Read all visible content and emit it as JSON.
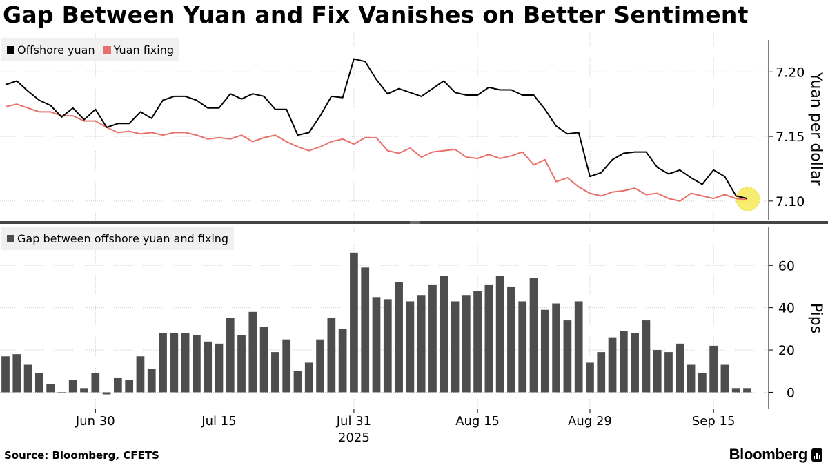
{
  "title": "Gap Between Yuan and Fix Vanishes on Better Sentiment",
  "source": "Source: Bloomberg, CFETS",
  "brand": "Bloomberg",
  "colors": {
    "offshore": "#000000",
    "fixing": "#e8706a",
    "bars": "#4d4d4d",
    "highlight": "#f5e94a"
  },
  "x_axis": {
    "ticks": [
      {
        "index": 8,
        "label": "Jun 30"
      },
      {
        "index": 19,
        "label": "Jul 15"
      },
      {
        "index": 31,
        "label": "Jul 31"
      },
      {
        "index": 42,
        "label": "Aug 15"
      },
      {
        "index": 52,
        "label": "Aug 29"
      },
      {
        "index": 63,
        "label": "Sep 15"
      }
    ],
    "year_label": "2025",
    "year_index": 31
  },
  "chart_data": [
    {
      "type": "line",
      "title": "",
      "ylabel": "Yuan per dollar",
      "ylim": [
        7.085,
        7.23
      ],
      "yticks": [
        "7.10",
        "7.15",
        "7.20"
      ],
      "legend": [
        "Offshore yuan",
        "Yuan fixing"
      ],
      "series": [
        {
          "name": "Offshore yuan",
          "values": [
            7.19,
            7.193,
            7.185,
            7.178,
            7.174,
            7.165,
            7.172,
            7.163,
            7.171,
            7.157,
            7.16,
            7.16,
            7.169,
            7.164,
            7.178,
            7.181,
            7.181,
            7.178,
            7.172,
            7.172,
            7.183,
            7.179,
            7.183,
            7.181,
            7.171,
            7.171,
            7.151,
            7.153,
            7.166,
            7.181,
            7.18,
            7.21,
            7.208,
            7.194,
            7.183,
            7.187,
            7.184,
            7.181,
            7.187,
            7.193,
            7.184,
            7.182,
            7.182,
            7.188,
            7.186,
            7.186,
            7.182,
            7.182,
            7.171,
            7.158,
            7.152,
            7.153,
            7.119,
            7.122,
            7.132,
            7.137,
            7.138,
            7.138,
            7.126,
            7.121,
            7.124,
            7.118,
            7.113,
            7.124,
            7.119,
            7.104,
            7.102
          ]
        },
        {
          "name": "Yuan fixing",
          "values": [
            7.173,
            7.175,
            7.172,
            7.169,
            7.169,
            7.166,
            7.166,
            7.162,
            7.162,
            7.157,
            7.153,
            7.154,
            7.152,
            7.153,
            7.151,
            7.153,
            7.153,
            7.151,
            7.148,
            7.149,
            7.148,
            7.151,
            7.146,
            7.149,
            7.151,
            7.146,
            7.142,
            7.139,
            7.142,
            7.146,
            7.148,
            7.144,
            7.149,
            7.149,
            7.139,
            7.137,
            7.141,
            7.134,
            7.138,
            7.139,
            7.14,
            7.134,
            7.133,
            7.136,
            7.133,
            7.135,
            7.138,
            7.128,
            7.132,
            7.115,
            7.118,
            7.111,
            7.106,
            7.104,
            7.107,
            7.108,
            7.11,
            7.105,
            7.106,
            7.102,
            7.1,
            7.106,
            7.104,
            7.102,
            7.105,
            7.102,
            7.101
          ]
        }
      ]
    },
    {
      "type": "bar",
      "title": "",
      "ylabel": "Pips",
      "ylim": [
        -8,
        78
      ],
      "yticks": [
        "0",
        "20",
        "40",
        "60"
      ],
      "legend": [
        "Gap between offshore yuan and fixing"
      ],
      "series": [
        {
          "name": "Gap between offshore yuan and fixing",
          "values": [
            17,
            18,
            13,
            9,
            4,
            0,
            6,
            2,
            9,
            -1,
            7,
            6,
            17,
            11,
            28,
            28,
            28,
            27,
            24,
            23,
            35,
            27,
            38,
            31,
            19,
            25,
            10,
            14,
            25,
            35,
            30,
            66,
            59,
            45,
            44,
            52,
            43,
            46,
            51,
            55,
            43,
            46,
            48,
            51,
            55,
            50,
            43,
            54,
            39,
            42,
            34,
            43,
            14,
            19,
            26,
            29,
            28,
            34,
            20,
            19,
            23,
            13,
            9,
            22,
            13,
            2,
            2
          ]
        }
      ]
    }
  ]
}
